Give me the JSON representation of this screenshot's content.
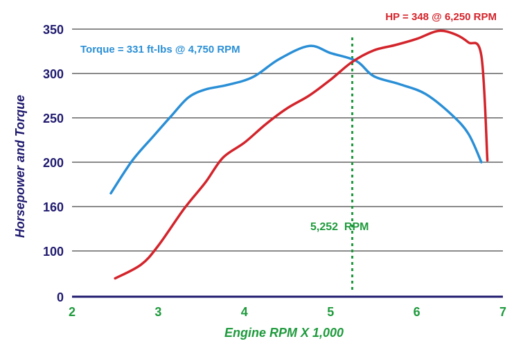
{
  "chart_data": {
    "type": "line",
    "xlabel": "Engine RPM X 1,000",
    "ylabel": "Horsepower and Torque",
    "xlim": [
      2,
      7
    ],
    "x_ticks": [
      "2",
      "3",
      "4",
      "5",
      "6",
      "7"
    ],
    "y_ticks": [
      "0",
      "100",
      "160",
      "200",
      "250",
      "300",
      "350"
    ],
    "grid": true,
    "series": [
      {
        "key": "torque",
        "color": "#2a8fd6",
        "x": [
          2.45,
          2.7,
          2.95,
          3.15,
          3.35,
          3.55,
          3.8,
          4.1,
          4.4,
          4.75,
          5.0,
          5.3,
          5.5,
          5.8,
          6.1,
          6.4,
          6.6,
          6.75
        ],
        "y": [
          172,
          202,
          230,
          252,
          273,
          282,
          287,
          296,
          316,
          331,
          323,
          314,
          297,
          288,
          277,
          254,
          232,
          200
        ]
      },
      {
        "key": "horsepower",
        "color": "#d3242b",
        "x": [
          2.5,
          2.8,
          3.0,
          3.3,
          3.55,
          3.75,
          4.0,
          4.25,
          4.5,
          4.75,
          5.0,
          5.25,
          5.5,
          5.75,
          6.0,
          6.25,
          6.45,
          6.6,
          6.75,
          6.82
        ],
        "y": [
          40,
          70,
          107,
          157,
          182,
          205,
          222,
          243,
          261,
          275,
          293,
          313,
          326,
          332,
          339,
          348,
          344,
          335,
          320,
          202
        ]
      }
    ],
    "annotations": {
      "torque_peak": "Torque = 331 ft-lbs @ 4,750 RPM",
      "hp_peak": "HP = 348 @ 6,250 RPM",
      "crossover_label": "5,252  RPM",
      "crossover_rpm": 5.252
    },
    "colors": {
      "axis_text": "#1f1a6e",
      "x_axis_text": "#1e9a3c",
      "gridline": "#444444"
    }
  }
}
